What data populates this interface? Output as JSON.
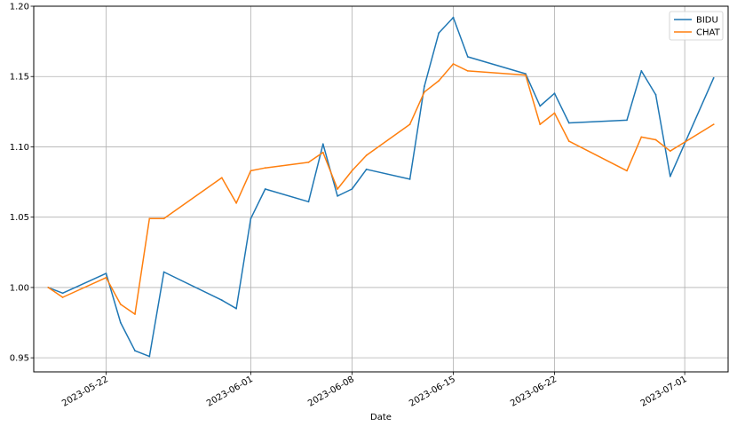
{
  "chart_data": {
    "type": "line",
    "title": "",
    "xlabel": "Date",
    "ylabel": "",
    "ylim": [
      0.94,
      1.2
    ],
    "xlim": [
      "2023-05-17",
      "2023-07-04"
    ],
    "grid": true,
    "legend_position": "top-right",
    "x_ticks": [
      "2023-05-22",
      "2023-06-01",
      "2023-06-08",
      "2023-06-15",
      "2023-06-22",
      "2023-07-01"
    ],
    "y_ticks": [
      "0.95",
      "1.00",
      "1.05",
      "1.10",
      "1.15",
      "1.20"
    ],
    "x": [
      "2023-05-18",
      "2023-05-19",
      "2023-05-22",
      "2023-05-23",
      "2023-05-24",
      "2023-05-25",
      "2023-05-26",
      "2023-05-30",
      "2023-05-31",
      "2023-06-01",
      "2023-06-02",
      "2023-06-05",
      "2023-06-06",
      "2023-06-07",
      "2023-06-08",
      "2023-06-09",
      "2023-06-12",
      "2023-06-13",
      "2023-06-14",
      "2023-06-15",
      "2023-06-16",
      "2023-06-20",
      "2023-06-21",
      "2023-06-22",
      "2023-06-23",
      "2023-06-27",
      "2023-06-28",
      "2023-06-29",
      "2023-06-30",
      "2023-07-03"
    ],
    "series": [
      {
        "name": "BIDU",
        "color": "#1f77b4",
        "values": [
          1.0,
          0.996,
          1.01,
          0.975,
          0.955,
          0.951,
          1.011,
          0.991,
          0.985,
          1.049,
          1.07,
          1.061,
          1.102,
          1.065,
          1.07,
          1.084,
          1.077,
          1.143,
          1.181,
          1.192,
          1.164,
          1.152,
          1.129,
          1.138,
          1.117,
          1.119,
          1.154,
          1.137,
          1.079,
          1.149
        ]
      },
      {
        "name": "CHAT",
        "color": "#ff7f0e",
        "values": [
          1.0,
          0.993,
          1.007,
          0.988,
          0.981,
          1.049,
          1.049,
          1.078,
          1.06,
          1.083,
          1.085,
          1.089,
          1.096,
          1.07,
          1.083,
          1.094,
          1.116,
          1.139,
          1.147,
          1.159,
          1.154,
          1.151,
          1.116,
          1.124,
          1.104,
          1.083,
          1.107,
          1.105,
          1.097,
          1.116
        ]
      }
    ]
  }
}
